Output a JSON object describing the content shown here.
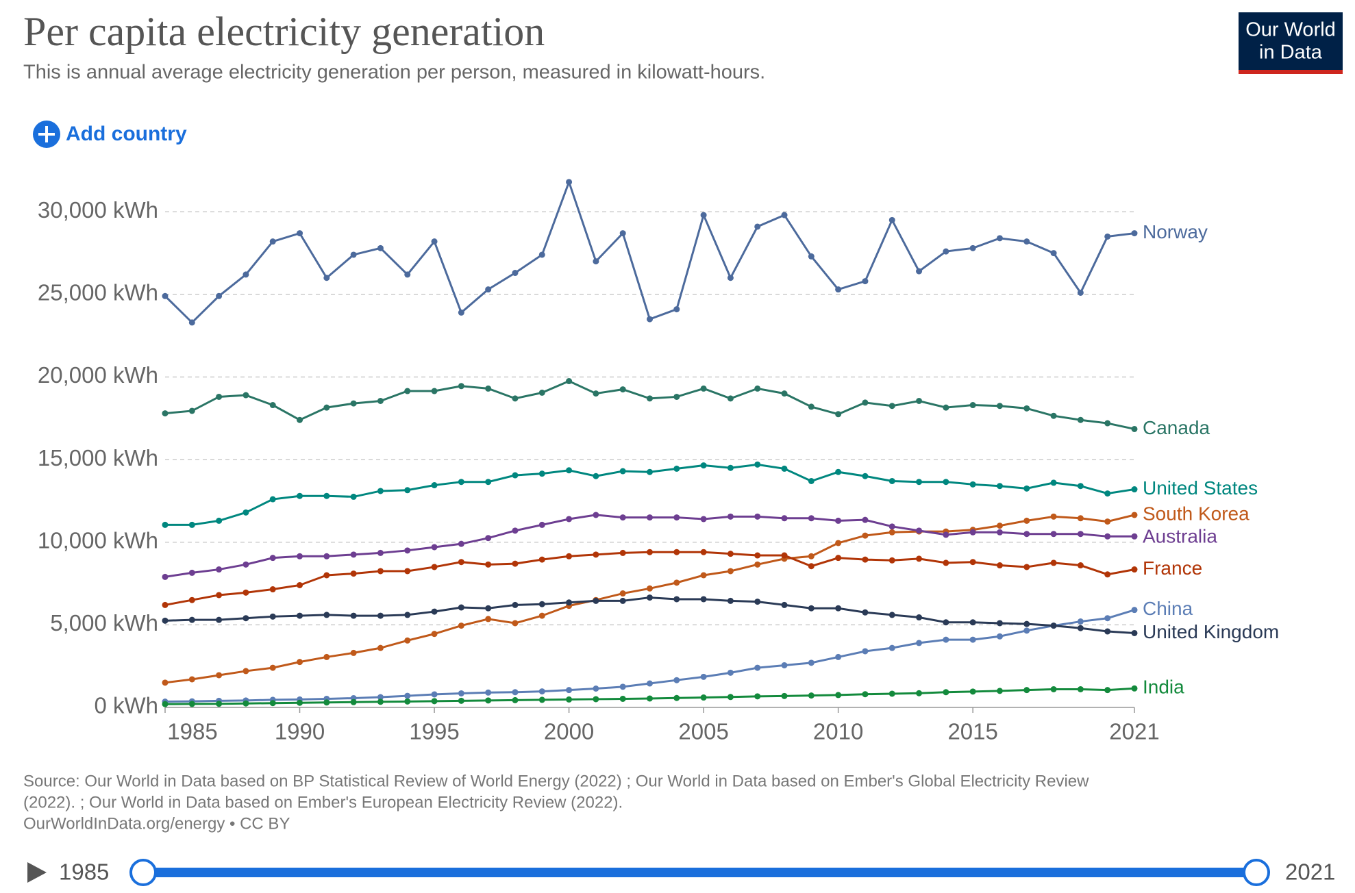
{
  "chart_data": {
    "type": "line",
    "title": "Per capita electricity generation",
    "subtitle": "This is annual average electricity generation per person, measured in kilowatt-hours.",
    "logo": [
      "Our World",
      "in Data"
    ],
    "add_button": "Add country",
    "source": [
      "Source: Our World in Data based on BP Statistical Review of World Energy (2022) ; Our World in Data based on Ember's Global Electricity Review",
      "(2022). ; Our World in Data based on Ember's European Electricity Review (2022).",
      "OurWorldInData.org/energy • CC BY"
    ],
    "timeline": {
      "start": "1985",
      "end": "2021"
    },
    "x": [
      1985,
      1986,
      1987,
      1988,
      1989,
      1990,
      1991,
      1992,
      1993,
      1994,
      1995,
      1996,
      1997,
      1998,
      1999,
      2000,
      2001,
      2002,
      2003,
      2004,
      2005,
      2006,
      2007,
      2008,
      2009,
      2010,
      2011,
      2012,
      2013,
      2014,
      2015,
      2016,
      2017,
      2018,
      2019,
      2020,
      2021
    ],
    "xlim": [
      1985,
      2021
    ],
    "xticks": [
      1985,
      1990,
      1995,
      2000,
      2005,
      2010,
      2015,
      2021
    ],
    "ylim": [
      0,
      32000
    ],
    "yticks": [
      {
        "value": 0,
        "label": "0 kWh"
      },
      {
        "value": 5000,
        "label": "5,000 kWh"
      },
      {
        "value": 10000,
        "label": "10,000 kWh"
      },
      {
        "value": 15000,
        "label": "15,000 kWh"
      },
      {
        "value": 20000,
        "label": "20,000 kWh"
      },
      {
        "value": 25000,
        "label": "25,000 kWh"
      },
      {
        "value": 30000,
        "label": "30,000 kWh"
      }
    ],
    "grid": true,
    "series": [
      {
        "name": "Norway",
        "color": "#4c6a9c",
        "values": [
          24900,
          23300,
          24900,
          26200,
          28200,
          28700,
          26000,
          27400,
          27800,
          26200,
          28200,
          23900,
          25300,
          26300,
          27400,
          31800,
          27000,
          28700,
          23500,
          24100,
          29800,
          26000,
          29100,
          29800,
          27300,
          25300,
          25800,
          29500,
          26400,
          27600,
          27800,
          28400,
          28200,
          27500,
          25100,
          28500,
          28700
        ]
      },
      {
        "name": "Canada",
        "color": "#2a7565",
        "values": [
          17800,
          17950,
          18800,
          18900,
          18300,
          17400,
          18150,
          18400,
          18550,
          19150,
          19150,
          19450,
          19300,
          18700,
          19050,
          19750,
          19000,
          19250,
          18700,
          18800,
          19300,
          18700,
          19300,
          19000,
          18200,
          17750,
          18450,
          18250,
          18550,
          18150,
          18300,
          18250,
          18100,
          17650,
          17400,
          17200,
          16850
        ]
      },
      {
        "name": "United States",
        "color": "#00877f",
        "values": [
          11050,
          11050,
          11300,
          11800,
          12600,
          12800,
          12800,
          12750,
          13100,
          13150,
          13450,
          13650,
          13650,
          14050,
          14150,
          14350,
          14000,
          14300,
          14250,
          14450,
          14650,
          14500,
          14700,
          14450,
          13700,
          14250,
          14000,
          13700,
          13650,
          13650,
          13500,
          13400,
          13250,
          13600,
          13400,
          12950,
          13200
        ]
      },
      {
        "name": "South Korea",
        "color": "#c0591a",
        "values": [
          1500,
          1700,
          1950,
          2200,
          2400,
          2750,
          3050,
          3300,
          3600,
          4050,
          4450,
          4950,
          5350,
          5100,
          5550,
          6150,
          6500,
          6900,
          7200,
          7550,
          8000,
          8250,
          8650,
          9000,
          9150,
          9950,
          10400,
          10600,
          10650,
          10650,
          10750,
          11000,
          11300,
          11550,
          11450,
          11250,
          11650
        ]
      },
      {
        "name": "Australia",
        "color": "#6d3e91",
        "values": [
          7900,
          8150,
          8350,
          8650,
          9050,
          9150,
          9150,
          9250,
          9350,
          9500,
          9700,
          9900,
          10250,
          10700,
          11050,
          11400,
          11650,
          11500,
          11500,
          11500,
          11400,
          11550,
          11550,
          11450,
          11450,
          11300,
          11350,
          10950,
          10700,
          10450,
          10600,
          10600,
          10500,
          10500,
          10500,
          10350,
          10350
        ]
      },
      {
        "name": "France",
        "color": "#b13507",
        "values": [
          6200,
          6500,
          6800,
          6950,
          7150,
          7400,
          8000,
          8100,
          8250,
          8250,
          8500,
          8800,
          8650,
          8700,
          8950,
          9150,
          9250,
          9350,
          9400,
          9400,
          9400,
          9300,
          9200,
          9200,
          8550,
          9050,
          8950,
          8900,
          9000,
          8750,
          8800,
          8600,
          8500,
          8750,
          8600,
          8050,
          8350
        ]
      },
      {
        "name": "China",
        "color": "#5b7db5",
        "values": [
          350,
          370,
          400,
          420,
          460,
          480,
          520,
          560,
          620,
          700,
          790,
          850,
          900,
          920,
          970,
          1050,
          1140,
          1250,
          1450,
          1650,
          1850,
          2100,
          2400,
          2550,
          2700,
          3050,
          3400,
          3600,
          3900,
          4100,
          4100,
          4300,
          4650,
          4950,
          5200,
          5400,
          5900
        ]
      },
      {
        "name": "United Kingdom",
        "color": "#2a3a56",
        "values": [
          5250,
          5300,
          5300,
          5400,
          5500,
          5550,
          5600,
          5550,
          5550,
          5600,
          5800,
          6050,
          6000,
          6200,
          6250,
          6350,
          6450,
          6450,
          6650,
          6550,
          6550,
          6450,
          6400,
          6200,
          6000,
          6000,
          5750,
          5600,
          5450,
          5150,
          5150,
          5100,
          5050,
          4950,
          4800,
          4600,
          4500
        ]
      },
      {
        "name": "India",
        "color": "#138a3c",
        "values": [
          200,
          210,
          220,
          240,
          260,
          280,
          300,
          320,
          340,
          360,
          380,
          400,
          420,
          440,
          460,
          480,
          500,
          520,
          540,
          570,
          600,
          630,
          670,
          690,
          720,
          750,
          800,
          830,
          860,
          920,
          960,
          1000,
          1050,
          1100,
          1100,
          1050,
          1150
        ]
      }
    ]
  }
}
